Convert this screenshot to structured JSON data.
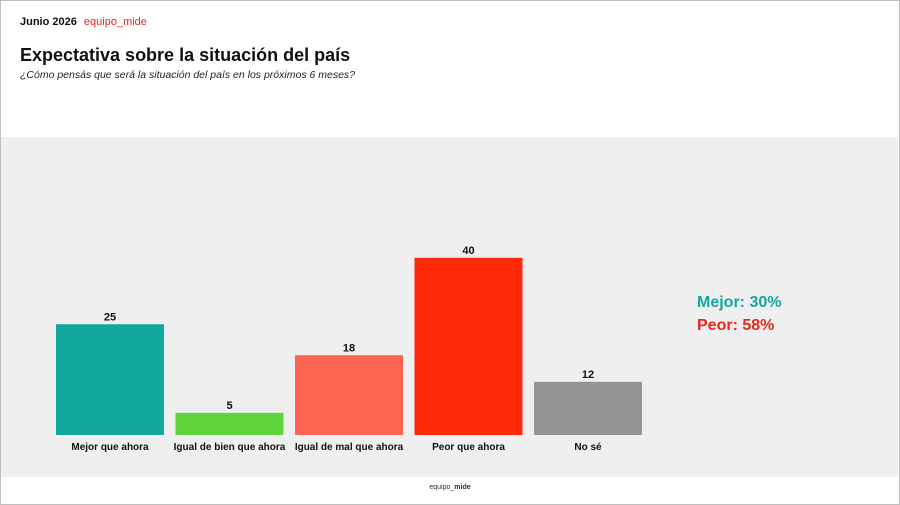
{
  "header": {
    "date": "Junio 2026",
    "brand": "equipo_mide",
    "title": "Expectativa sobre la situación del país",
    "subtitle": "¿Cómo pensás que será la situación del país en los próximos 6 meses?"
  },
  "summary": {
    "better_label": "Mejor: 30%",
    "worse_label": "Peor: 58%"
  },
  "footer": {
    "prefix": "equipo_",
    "suffix": "mide"
  },
  "colors": {
    "teal": "#13a89e",
    "green": "#5ed43a",
    "salmon": "#ff6452",
    "red": "#ff2a0a",
    "gray": "#959595"
  },
  "chart_data": {
    "type": "bar",
    "categories": [
      "Mejor que ahora",
      "Igual de bien que ahora",
      "Igual de mal que ahora",
      "Peor que ahora",
      "No sé"
    ],
    "values": [
      25,
      5,
      18,
      40,
      12
    ],
    "bar_colors": [
      "#13a89e",
      "#5ed43a",
      "#ff6452",
      "#ff2a0a",
      "#959595"
    ],
    "title": "Expectativa sobre la situación del país",
    "xlabel": "",
    "ylabel": "",
    "ylim": [
      0,
      40
    ],
    "grid": false,
    "data_labels": true
  }
}
